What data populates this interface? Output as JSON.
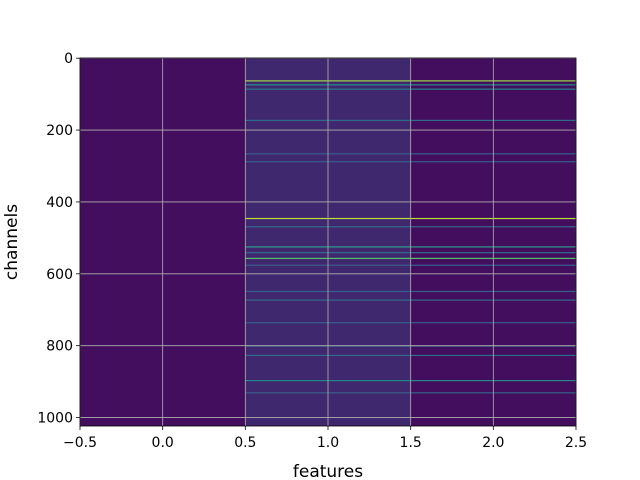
{
  "chart_data": {
    "type": "heatmap",
    "title": "",
    "xlabel": "features",
    "ylabel": "channels",
    "xlim": [
      -0.5,
      2.5
    ],
    "ylim": [
      1023.5,
      -0.5
    ],
    "x_ticks": [
      -0.5,
      0.0,
      0.5,
      1.0,
      1.5,
      2.0,
      2.5
    ],
    "x_tick_labels": [
      "−0.5",
      "0.0",
      "0.5",
      "1.0",
      "1.5",
      "2.0",
      "2.5"
    ],
    "y_ticks": [
      0,
      200,
      400,
      600,
      800,
      1000
    ],
    "y_tick_labels": [
      "0",
      "200",
      "400",
      "600",
      "800",
      "1000"
    ],
    "grid": true,
    "colormap": "viridis",
    "n_channels": 1024,
    "n_features": 3,
    "columns": [
      {
        "feature": 0,
        "base_value": 0.04,
        "highlights": []
      },
      {
        "feature": 1,
        "base_value": 0.12,
        "highlights": [
          {
            "channel": 62,
            "value": 0.85
          },
          {
            "channel": 73,
            "value": 0.5
          },
          {
            "channel": 85,
            "value": 0.4
          },
          {
            "channel": 172,
            "value": 0.35
          },
          {
            "channel": 265,
            "value": 0.3
          },
          {
            "channel": 287,
            "value": 0.3
          },
          {
            "channel": 445,
            "value": 0.9
          },
          {
            "channel": 468,
            "value": 0.35
          },
          {
            "channel": 524,
            "value": 0.55
          },
          {
            "channel": 540,
            "value": 0.35
          },
          {
            "channel": 556,
            "value": 0.7
          },
          {
            "channel": 575,
            "value": 0.3
          },
          {
            "channel": 648,
            "value": 0.3
          },
          {
            "channel": 672,
            "value": 0.35
          },
          {
            "channel": 735,
            "value": 0.3
          },
          {
            "channel": 800,
            "value": 0.3
          },
          {
            "channel": 826,
            "value": 0.35
          },
          {
            "channel": 896,
            "value": 0.45
          },
          {
            "channel": 930,
            "value": 0.3
          }
        ]
      },
      {
        "feature": 2,
        "base_value": 0.04,
        "highlights": [
          {
            "channel": 62,
            "value": 0.85
          },
          {
            "channel": 73,
            "value": 0.5
          },
          {
            "channel": 85,
            "value": 0.45
          },
          {
            "channel": 172,
            "value": 0.35
          },
          {
            "channel": 265,
            "value": 0.3
          },
          {
            "channel": 287,
            "value": 0.3
          },
          {
            "channel": 445,
            "value": 0.9
          },
          {
            "channel": 468,
            "value": 0.35
          },
          {
            "channel": 524,
            "value": 0.55
          },
          {
            "channel": 540,
            "value": 0.35
          },
          {
            "channel": 556,
            "value": 0.7
          },
          {
            "channel": 575,
            "value": 0.3
          },
          {
            "channel": 648,
            "value": 0.3
          },
          {
            "channel": 672,
            "value": 0.35
          },
          {
            "channel": 735,
            "value": 0.3
          },
          {
            "channel": 800,
            "value": 0.3
          },
          {
            "channel": 826,
            "value": 0.35
          },
          {
            "channel": 896,
            "value": 0.45
          },
          {
            "channel": 930,
            "value": 0.3
          }
        ]
      }
    ]
  },
  "colors": {
    "background": "#ffffff",
    "axis": "#000000",
    "grid": "#b0b0b0"
  }
}
